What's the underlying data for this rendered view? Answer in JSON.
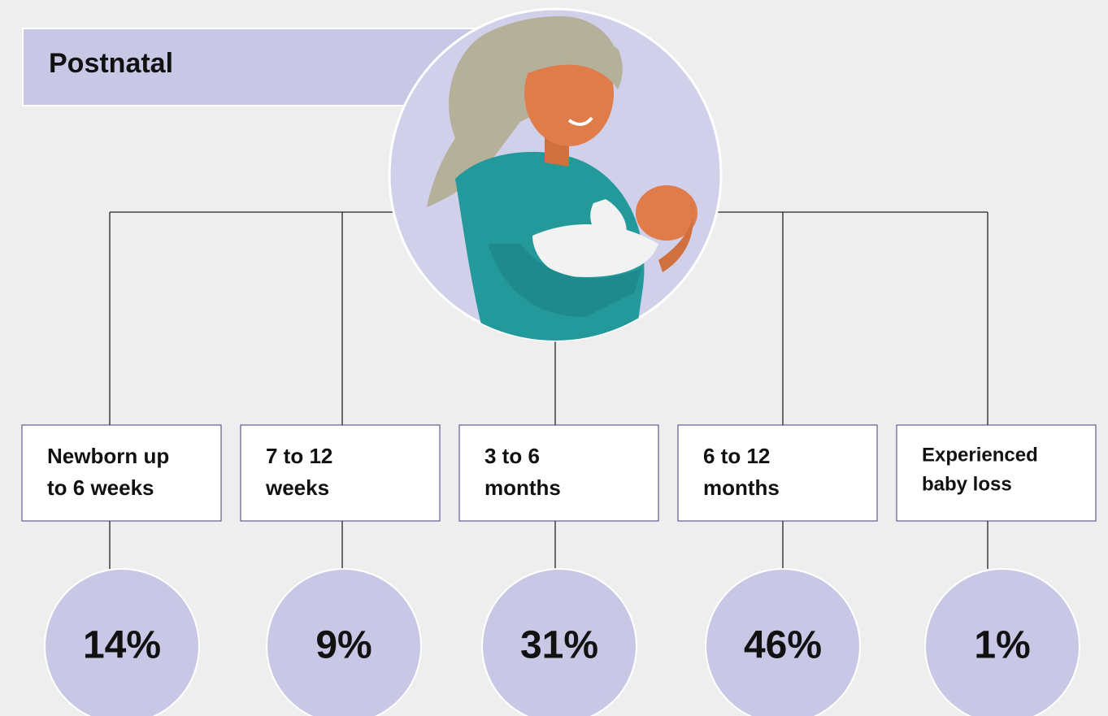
{
  "header": {
    "title": "Postnatal"
  },
  "nodes": [
    {
      "label": [
        "Newborn up",
        "to 6 weeks"
      ],
      "value": "14%"
    },
    {
      "label": [
        "7 to 12",
        "weeks"
      ],
      "value": "9%"
    },
    {
      "label": [
        "3 to 6",
        "months"
      ],
      "value": "31%"
    },
    {
      "label": [
        "6 to 12",
        "months"
      ],
      "value": "46%"
    },
    {
      "label": [
        "Experienced",
        "baby loss"
      ],
      "value": "1%"
    }
  ]
}
